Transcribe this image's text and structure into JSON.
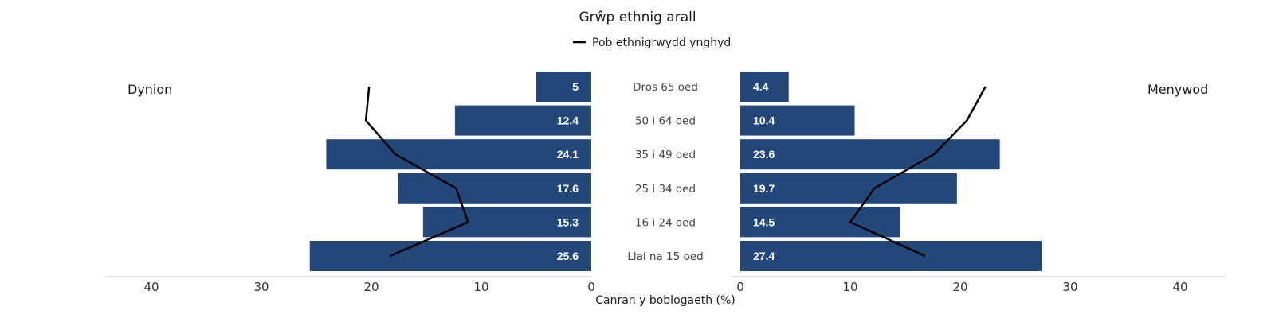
{
  "chart_data": {
    "type": "bar",
    "orientation": "horizontal-population-pyramid",
    "title": "Grŵp ethnig arall",
    "legend": {
      "label": "Pob ethnigrwydd ynghyd",
      "placement": "top-center"
    },
    "left_panel_label": "Dynion",
    "right_panel_label": "Menywod",
    "xlabel": "Canran y boblogaeth (%)",
    "xlim": [
      0,
      40
    ],
    "xticks": [
      "0",
      "10",
      "20",
      "30",
      "40"
    ],
    "grid": false,
    "categories": [
      "Dros 65 oed",
      "50 i 64 oed",
      "35 i 49 oed",
      "25 i 34 oed",
      "16 i 24 oed",
      "Llai na 15 oed"
    ],
    "series": [
      {
        "name": "Dynion",
        "values": [
          5,
          12.4,
          24.1,
          17.6,
          15.3,
          25.6
        ],
        "labels": [
          "5",
          "12.4",
          "24.1",
          "17.6",
          "15.3",
          "25.6"
        ]
      },
      {
        "name": "Menywod",
        "values": [
          4.4,
          10.4,
          23.6,
          19.7,
          14.5,
          27.4
        ],
        "labels": [
          "4.4",
          "10.4",
          "23.6",
          "19.7",
          "14.5",
          "27.4"
        ]
      }
    ],
    "line_series": [
      {
        "name": "Pob ethnigrwydd ynghyd",
        "side": "Dynion",
        "values": [
          20.2,
          20.5,
          17.8,
          12.3,
          11.2,
          18.3
        ]
      },
      {
        "name": "Pob ethnigrwydd ynghyd",
        "side": "Menywod",
        "values": [
          22.3,
          20.6,
          17.6,
          12.2,
          10.0,
          16.8
        ]
      }
    ],
    "colors": {
      "bar": "#24477a",
      "line": "#000000",
      "axis": "#c8c8c8"
    }
  }
}
